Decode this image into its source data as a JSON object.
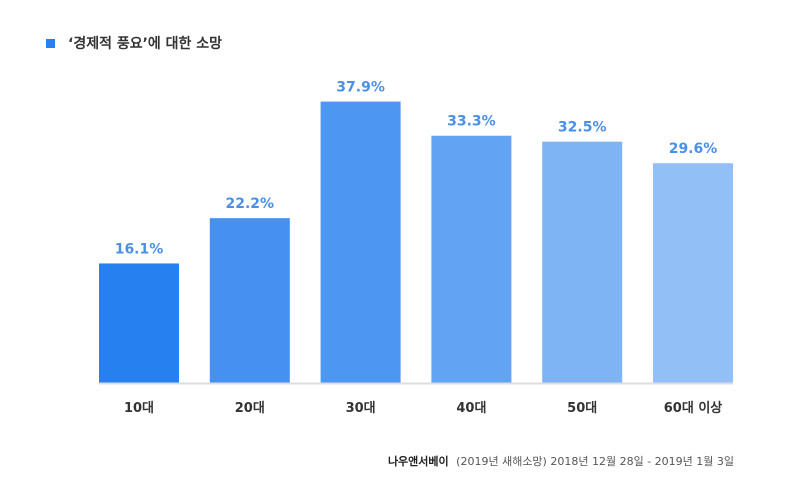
{
  "chart_data": {
    "type": "bar",
    "title": "‘경제적 풍요’에 대한 소망",
    "categories": [
      "10대",
      "20대",
      "30대",
      "40대",
      "50대",
      "60대 이상"
    ],
    "values": [
      16.1,
      22.2,
      37.9,
      33.3,
      32.5,
      29.6
    ],
    "value_labels": [
      "16.1%",
      "22.2%",
      "37.9%",
      "33.3%",
      "32.5%",
      "29.6%"
    ],
    "colors": [
      "#2680f0",
      "#4690f1",
      "#4d96f2",
      "#63a3f3",
      "#7eb3f4",
      "#91bff6"
    ],
    "label_color": "#4a90e8",
    "axis_color": "#dddddd",
    "ylim": [
      0,
      43.5
    ],
    "xlabel": "",
    "ylabel": "",
    "grid": false,
    "legend_position": "top-left"
  },
  "legend": {
    "label": "‘경제적 풍요’에 대한 소망",
    "color": "#2680f0"
  },
  "footer": {
    "source": "나우앤서베이",
    "detail": "(2019년 새해소망) 2018년 12월 28일 - 2019년 1월 3일"
  }
}
